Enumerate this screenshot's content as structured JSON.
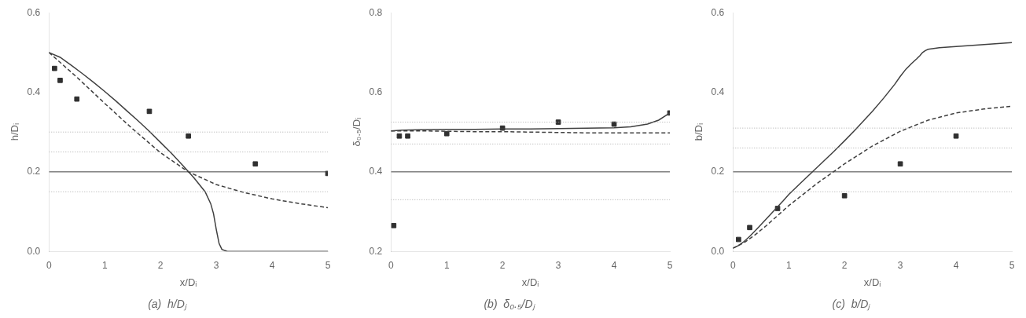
{
  "chart_data": [
    {
      "type": "line",
      "title": "(a)  h/Dⱼ",
      "x_label": "x/Dᵢ",
      "y_label": "h/Dᵢ",
      "xlim": [
        0,
        5
      ],
      "xticks": [
        0,
        1,
        2,
        3,
        4,
        5
      ],
      "ylim": [
        0,
        0.6
      ],
      "yticks": [
        {
          "value": 0,
          "label": "0.0"
        },
        0.2,
        0.4,
        0.6
      ],
      "grid": false,
      "series": [
        {
          "type": "hline",
          "line_style": "dotted",
          "color": "#aaaaaa",
          "values": [
            0.15,
            0.25,
            0.3
          ]
        },
        {
          "type": "hline",
          "line_style": "solid",
          "color": "#404040",
          "values": [
            0.2
          ]
        },
        {
          "type": "line",
          "line_style": "solid",
          "color": "#404040",
          "x": [
            0.0,
            0.2,
            0.4,
            0.6,
            0.8,
            1.0,
            1.2,
            1.4,
            1.6,
            1.8,
            2.0,
            2.2,
            2.4,
            2.6,
            2.8,
            2.9,
            2.95,
            3.0,
            3.05,
            3.1,
            3.2,
            4.0,
            5.0
          ],
          "values": [
            0.5,
            0.488,
            0.468,
            0.447,
            0.425,
            0.402,
            0.378,
            0.353,
            0.328,
            0.302,
            0.274,
            0.246,
            0.216,
            0.185,
            0.15,
            0.12,
            0.095,
            0.055,
            0.02,
            0.005,
            0.0,
            0.0,
            0.0
          ]
        },
        {
          "type": "line",
          "line_style": "dashed",
          "color": "#404040",
          "x": [
            0.0,
            0.5,
            1.0,
            1.5,
            2.0,
            2.5,
            3.0,
            3.5,
            4.0,
            4.5,
            5.0
          ],
          "values": [
            0.5,
            0.438,
            0.372,
            0.308,
            0.248,
            0.2,
            0.168,
            0.148,
            0.132,
            0.12,
            0.11
          ]
        },
        {
          "type": "scatter",
          "marker": "square",
          "color": "#303030",
          "x": [
            0.1,
            0.2,
            0.5,
            1.8,
            2.5,
            3.7,
            5.0
          ],
          "values": [
            0.46,
            0.43,
            0.383,
            0.352,
            0.29,
            0.22,
            0.196
          ]
        }
      ]
    },
    {
      "type": "line",
      "title": "(b)  δ₀.₅/Dⱼ",
      "x_label": "x/Dᵢ",
      "y_label": "δ₀.₅/Dᵢ",
      "xlim": [
        0,
        5
      ],
      "xticks": [
        0,
        1,
        2,
        3,
        4,
        5
      ],
      "ylim": [
        0.2,
        0.8
      ],
      "yticks": [
        0.2,
        0.4,
        0.6,
        0.8
      ],
      "grid": false,
      "series": [
        {
          "type": "hline",
          "line_style": "dotted",
          "color": "#aaaaaa",
          "values": [
            0.33,
            0.47,
            0.525
          ]
        },
        {
          "type": "hline",
          "line_style": "solid",
          "color": "#404040",
          "values": [
            0.4
          ]
        },
        {
          "type": "line",
          "line_style": "solid",
          "color": "#404040",
          "x": [
            0.0,
            0.2,
            0.5,
            1.0,
            1.5,
            2.0,
            2.5,
            3.0,
            3.5,
            4.0,
            4.3,
            4.6,
            4.8,
            5.0
          ],
          "values": [
            0.503,
            0.505,
            0.506,
            0.507,
            0.507,
            0.508,
            0.508,
            0.509,
            0.51,
            0.511,
            0.513,
            0.52,
            0.53,
            0.548
          ]
        },
        {
          "type": "line",
          "line_style": "dashed",
          "color": "#404040",
          "x": [
            0.0,
            0.5,
            1.0,
            1.5,
            2.0,
            2.5,
            3.0,
            3.5,
            4.0,
            4.5,
            5.0
          ],
          "values": [
            0.503,
            0.503,
            0.502,
            0.501,
            0.501,
            0.5,
            0.499,
            0.498,
            0.498,
            0.498,
            0.498
          ]
        },
        {
          "type": "scatter",
          "marker": "square",
          "color": "#303030",
          "x": [
            0.05,
            0.15,
            0.3,
            1.0,
            2.0,
            3.0,
            4.0,
            5.0
          ],
          "values": [
            0.265,
            0.49,
            0.49,
            0.496,
            0.51,
            0.525,
            0.52,
            0.548
          ]
        }
      ]
    },
    {
      "type": "line",
      "title": "(c)  b/Dⱼ",
      "x_label": "x/Dᵢ",
      "y_label": "b/Dᵢ",
      "xlim": [
        0,
        5
      ],
      "xticks": [
        0,
        1,
        2,
        3,
        4,
        5
      ],
      "ylim": [
        0,
        0.6
      ],
      "yticks": [
        {
          "value": 0,
          "label": "0.0"
        },
        0.2,
        0.4,
        0.6
      ],
      "grid": false,
      "series": [
        {
          "type": "hline",
          "line_style": "dotted",
          "color": "#aaaaaa",
          "values": [
            0.15,
            0.26,
            0.31
          ]
        },
        {
          "type": "hline",
          "line_style": "solid",
          "color": "#404040",
          "values": [
            0.2
          ]
        },
        {
          "type": "line",
          "line_style": "solid",
          "color": "#404040",
          "x": [
            0.0,
            0.1,
            0.2,
            0.3,
            0.4,
            0.5,
            0.7,
            0.9,
            1.0,
            1.2,
            1.5,
            1.8,
            2.0,
            2.2,
            2.5,
            2.7,
            2.9,
            3.0,
            3.1,
            3.2,
            3.3,
            3.35,
            3.4,
            3.45,
            3.5,
            3.6,
            3.7,
            4.0,
            4.5,
            5.0
          ],
          "values": [
            0.008,
            0.015,
            0.025,
            0.038,
            0.052,
            0.067,
            0.097,
            0.127,
            0.143,
            0.17,
            0.21,
            0.25,
            0.278,
            0.307,
            0.352,
            0.385,
            0.42,
            0.44,
            0.458,
            0.472,
            0.485,
            0.492,
            0.5,
            0.505,
            0.508,
            0.51,
            0.512,
            0.515,
            0.52,
            0.525
          ]
        },
        {
          "type": "line",
          "line_style": "dashed",
          "color": "#404040",
          "x": [
            0.0,
            0.2,
            0.4,
            0.6,
            0.8,
            1.0,
            1.5,
            2.0,
            2.5,
            3.0,
            3.5,
            4.0,
            4.5,
            5.0
          ],
          "values": [
            0.008,
            0.022,
            0.042,
            0.065,
            0.09,
            0.115,
            0.17,
            0.22,
            0.265,
            0.302,
            0.33,
            0.348,
            0.358,
            0.365
          ]
        },
        {
          "type": "scatter",
          "marker": "square",
          "color": "#303030",
          "x": [
            0.1,
            0.3,
            0.8,
            2.0,
            3.0,
            4.0
          ],
          "values": [
            0.03,
            0.06,
            0.108,
            0.14,
            0.22,
            0.29
          ]
        }
      ]
    }
  ]
}
